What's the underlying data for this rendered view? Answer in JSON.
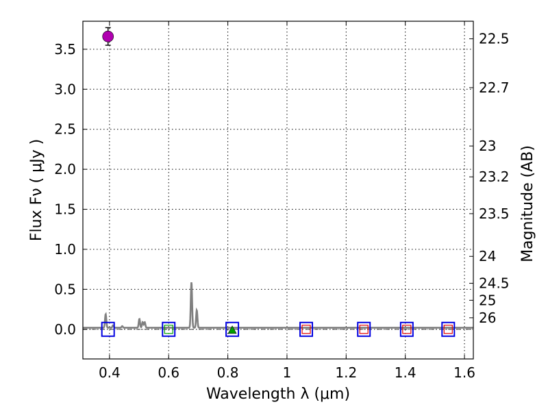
{
  "chart_data": {
    "type": "scatter",
    "xlabel": "Wavelength  λ (μm)",
    "ylabel": "Flux  Fν  ( μJy )",
    "y2label": "Magnitude (AB)",
    "xlim": [
      0.31,
      1.63
    ],
    "ylim": [
      -0.37,
      3.85
    ],
    "x_ticks": [
      {
        "value": 0.4,
        "label": "0.4"
      },
      {
        "value": 0.6,
        "label": "0.6"
      },
      {
        "value": 0.8,
        "label": "0.8"
      },
      {
        "value": 1.0,
        "label": "1"
      },
      {
        "value": 1.2,
        "label": "1.2"
      },
      {
        "value": 1.4,
        "label": "1.4"
      },
      {
        "value": 1.6,
        "label": "1.6"
      }
    ],
    "y_ticks": [
      {
        "value": 0.0,
        "label": "0.0"
      },
      {
        "value": 0.5,
        "label": "0.5"
      },
      {
        "value": 1.0,
        "label": "1.0"
      },
      {
        "value": 1.5,
        "label": "1.5"
      },
      {
        "value": 2.0,
        "label": "2.0"
      },
      {
        "value": 2.5,
        "label": "2.5"
      },
      {
        "value": 3.0,
        "label": "3.0"
      },
      {
        "value": 3.5,
        "label": "3.5"
      }
    ],
    "magnitude_ticks": [
      {
        "value": 22.5,
        "label": "22.5"
      },
      {
        "value": 22.7,
        "label": "22.7"
      },
      {
        "value": 23.0,
        "label": "23"
      },
      {
        "value": 23.2,
        "label": "23.2"
      },
      {
        "value": 23.5,
        "label": "23.5"
      },
      {
        "value": 24.0,
        "label": "24"
      },
      {
        "value": 24.5,
        "label": "24.5"
      },
      {
        "value": 25.0,
        "label": "25"
      },
      {
        "value": 26.0,
        "label": "26"
      }
    ],
    "grid": true,
    "detection": {
      "x": 0.395,
      "y": 3.66,
      "yerr": 0.11,
      "color": "#b000b0"
    },
    "upper_limit": {
      "x": 0.815,
      "y": 0.0,
      "color": "#00a000"
    },
    "filter_boxes": [
      {
        "x": 0.395,
        "y": 0.0,
        "inner_color": null
      },
      {
        "x": 0.6,
        "y": 0.0,
        "inner_color": "#00a000"
      },
      {
        "x": 0.815,
        "y": 0.0,
        "inner_color": null
      },
      {
        "x": 1.065,
        "y": 0.0,
        "inner_color": "#e00000"
      },
      {
        "x": 1.26,
        "y": 0.0,
        "inner_color": "#e00000"
      },
      {
        "x": 1.405,
        "y": 0.0,
        "inner_color": "#e00000"
      },
      {
        "x": 1.545,
        "y": 0.0,
        "inner_color": "#e00000"
      }
    ],
    "model_spectrum": {
      "color": "#808080",
      "baseline": 0.02,
      "range": [
        0.31,
        1.63
      ],
      "lines": [
        {
          "x": 0.387,
          "peak": 0.19
        },
        {
          "x": 0.412,
          "peak": 0.05
        },
        {
          "x": 0.443,
          "peak": 0.04
        },
        {
          "x": 0.501,
          "peak": 0.13
        },
        {
          "x": 0.512,
          "peak": 0.09
        },
        {
          "x": 0.519,
          "peak": 0.09
        },
        {
          "x": 0.677,
          "peak": 0.59
        },
        {
          "x": 0.695,
          "peak": 0.24
        }
      ]
    },
    "colors": {
      "box_outer": "#0000e0",
      "dash_line": "#404040"
    }
  }
}
